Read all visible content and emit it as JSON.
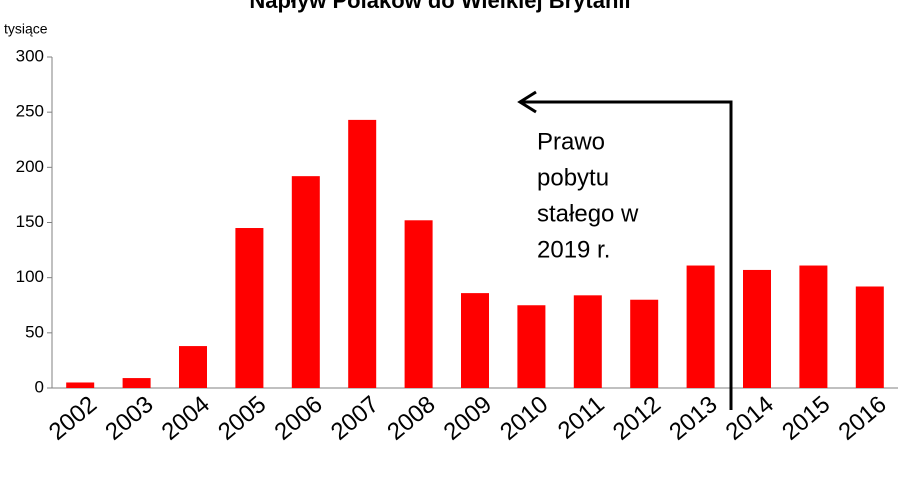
{
  "chart_data": {
    "type": "bar",
    "title": "Napływ Polaków do Wielkiej Brytanii",
    "y_label": "tysiące",
    "categories": [
      "2002",
      "2003",
      "2004",
      "2005",
      "2006",
      "2007",
      "2008",
      "2009",
      "2010",
      "2011",
      "2012",
      "2013",
      "2014",
      "2015",
      "2016"
    ],
    "values": [
      5,
      9,
      38,
      145,
      192,
      243,
      152,
      86,
      75,
      84,
      80,
      111,
      107,
      111,
      92
    ],
    "color": "#ff0000",
    "ylim": [
      0,
      300
    ],
    "yticks": [
      0,
      50,
      100,
      150,
      200,
      250,
      300
    ],
    "grid": false,
    "annotation": [
      "Prawo",
      "pobytu",
      "stałego w",
      "2019 r."
    ]
  }
}
